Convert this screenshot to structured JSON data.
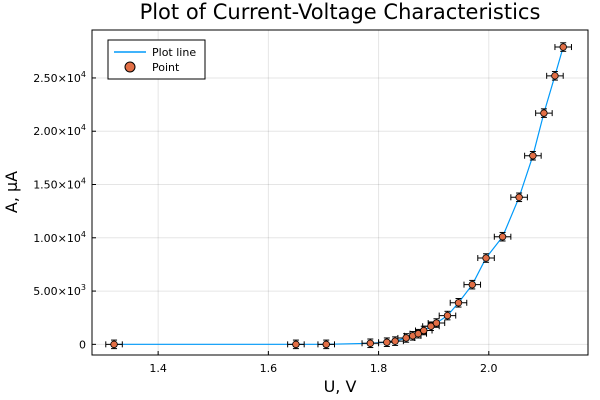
{
  "chart_data": {
    "type": "scatter",
    "title": "Plot of Current-Voltage Characteristics",
    "xlabel": "U, V",
    "ylabel": "A, µA",
    "xlim": [
      1.28,
      2.18
    ],
    "ylim": [
      -1000,
      29500
    ],
    "x_ticks": [
      {
        "value": 1.4,
        "label": "1.4"
      },
      {
        "value": 1.6,
        "label": "1.6"
      },
      {
        "value": 1.8,
        "label": "1.8"
      },
      {
        "value": 2.0,
        "label": "2.0"
      }
    ],
    "y_ticks": [
      {
        "value": 0,
        "label": "0",
        "exp": ""
      },
      {
        "value": 5000,
        "label": "5.00×10",
        "exp": "3"
      },
      {
        "value": 10000,
        "label": "1.00×10",
        "exp": "4"
      },
      {
        "value": 15000,
        "label": "1.50×10",
        "exp": "4"
      },
      {
        "value": 20000,
        "label": "2.00×10",
        "exp": "4"
      },
      {
        "value": 25000,
        "label": "2.50×10",
        "exp": "4"
      }
    ],
    "grid": true,
    "legend_position": "top-left",
    "series": [
      {
        "name": "Plot line",
        "kind": "line",
        "color": "#009AFA"
      },
      {
        "name": "Point",
        "kind": "scatter",
        "color": "#E26F46"
      }
    ],
    "x": [
      1.32,
      1.65,
      1.705,
      1.785,
      1.815,
      1.83,
      1.85,
      1.862,
      1.872,
      1.882,
      1.895,
      1.905,
      1.925,
      1.945,
      1.97,
      1.995,
      2.025,
      2.055,
      2.08,
      2.1,
      2.12,
      2.135
    ],
    "y": [
      0,
      0,
      0,
      100,
      200,
      300,
      600,
      800,
      1000,
      1300,
      1700,
      2000,
      2700,
      3900,
      5600,
      8100,
      10100,
      13800,
      17700,
      21700,
      25200,
      27900
    ],
    "x_error": 0.015,
    "y_error": 400
  }
}
